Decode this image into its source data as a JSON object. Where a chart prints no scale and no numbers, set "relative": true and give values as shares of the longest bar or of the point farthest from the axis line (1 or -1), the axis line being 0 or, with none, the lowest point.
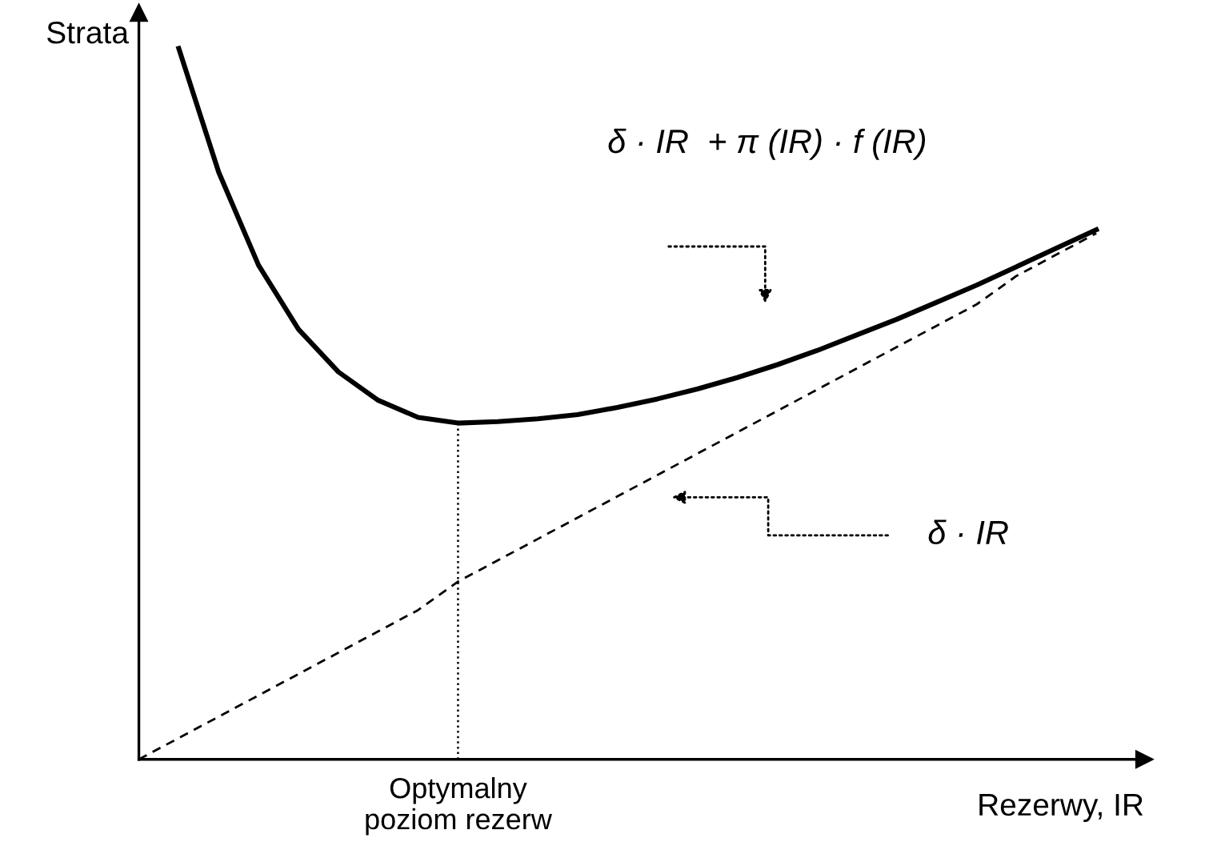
{
  "chart_data": {
    "type": "line",
    "relative": true,
    "ylabel": "Strata",
    "xlabel": "Rezerwy, IR",
    "categories": [
      null,
      null,
      null,
      null,
      null,
      null,
      null,
      null,
      null,
      null,
      null,
      null,
      null,
      null,
      null,
      null,
      null,
      null,
      null,
      null,
      null,
      null,
      null,
      null,
      null,
      null
    ],
    "series": [
      {
        "color": "#000000",
        "line_style": "solid",
        "values": [
          null,
          1.0,
          0.826,
          0.695,
          0.605,
          0.545,
          0.505,
          0.481,
          0.473,
          0.475,
          0.479,
          0.485,
          0.495,
          0.507,
          0.521,
          0.537,
          0.555,
          0.575,
          0.597,
          0.619,
          0.643,
          0.667,
          0.693,
          0.719,
          0.745,
          null
        ]
      },
      {
        "color": "#000000",
        "line_style": "dashed",
        "values": [
          0,
          0.03,
          0.06,
          0.09,
          0.12,
          0.15,
          0.18,
          0.21,
          0.25,
          0.28,
          0.31,
          0.34,
          0.37,
          0.4,
          0.43,
          0.46,
          0.49,
          0.52,
          0.55,
          0.58,
          0.61,
          0.64,
          0.68,
          0.71,
          0.74,
          null
        ]
      }
    ],
    "annotations": [
      "δ · IR  + π (IR) · f (IR)",
      "δ · IR",
      "Optymalny\npoziom rezerw"
    ]
  }
}
